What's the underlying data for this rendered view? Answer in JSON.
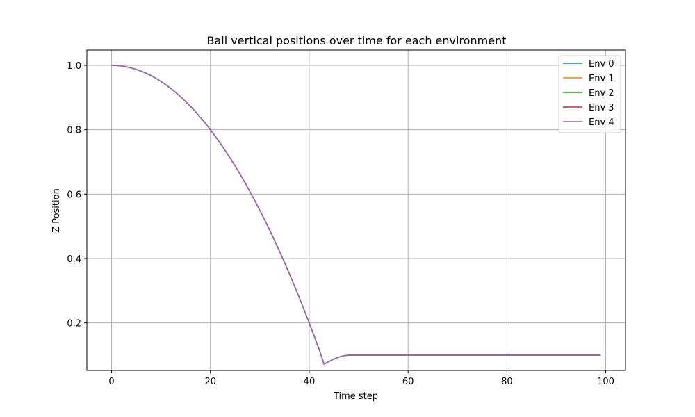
{
  "chart_data": {
    "type": "line",
    "title": "Ball vertical positions over time for each environment",
    "xlabel": "Time step",
    "ylabel": "Z Position",
    "xlim": [
      -5,
      104
    ],
    "ylim": [
      0.0525,
      1.0475
    ],
    "xticks": [
      0,
      20,
      40,
      60,
      80,
      100
    ],
    "yticks": [
      0.2,
      0.4,
      0.6,
      0.8,
      1.0
    ],
    "xtick_labels": [
      "0",
      "20",
      "40",
      "60",
      "80",
      "100"
    ],
    "ytick_labels": [
      "0.2",
      "0.4",
      "0.6",
      "0.8",
      "1.0"
    ],
    "grid": true,
    "legend_position": "top-right",
    "x": [
      0,
      1,
      2,
      3,
      4,
      5,
      6,
      7,
      8,
      9,
      10,
      11,
      12,
      13,
      14,
      15,
      16,
      17,
      18,
      19,
      20,
      21,
      22,
      23,
      24,
      25,
      26,
      27,
      28,
      29,
      30,
      31,
      32,
      33,
      34,
      35,
      36,
      37,
      38,
      39,
      40,
      41,
      42,
      43,
      44,
      45,
      46,
      47,
      48,
      49,
      50,
      51,
      52,
      53,
      54,
      55,
      56,
      57,
      58,
      59,
      60,
      61,
      62,
      63,
      64,
      65,
      66,
      67,
      68,
      69,
      70,
      71,
      72,
      73,
      74,
      75,
      76,
      77,
      78,
      79,
      80,
      81,
      82,
      83,
      84,
      85,
      86,
      87,
      88,
      89,
      90,
      91,
      92,
      93,
      94,
      95,
      96,
      97,
      98,
      99
    ],
    "series": [
      {
        "name": "Env 0",
        "color": "#1f77b4",
        "values": [
          1.0,
          0.9995,
          0.998,
          0.9955,
          0.992,
          0.9875,
          0.982,
          0.9755,
          0.968,
          0.9595,
          0.95,
          0.9395,
          0.928,
          0.9155,
          0.902,
          0.8875,
          0.872,
          0.8555,
          0.838,
          0.8195,
          0.8,
          0.7795,
          0.758,
          0.7355,
          0.712,
          0.6875,
          0.662,
          0.6355,
          0.608,
          0.5795,
          0.55,
          0.5195,
          0.488,
          0.4555,
          0.422,
          0.3875,
          0.352,
          0.3155,
          0.278,
          0.2395,
          0.2,
          0.1595,
          0.118,
          0.072,
          0.08,
          0.088,
          0.094,
          0.098,
          0.1,
          0.1,
          0.1,
          0.1,
          0.1,
          0.1,
          0.1,
          0.1,
          0.1,
          0.1,
          0.1,
          0.1,
          0.1,
          0.1,
          0.1,
          0.1,
          0.1,
          0.1,
          0.1,
          0.1,
          0.1,
          0.1,
          0.1,
          0.1,
          0.1,
          0.1,
          0.1,
          0.1,
          0.1,
          0.1,
          0.1,
          0.1,
          0.1,
          0.1,
          0.1,
          0.1,
          0.1,
          0.1,
          0.1,
          0.1,
          0.1,
          0.1,
          0.1,
          0.1,
          0.1,
          0.1,
          0.1,
          0.1,
          0.1,
          0.1,
          0.1,
          0.1
        ]
      },
      {
        "name": "Env 1",
        "color": "#ff7f0e",
        "values": [
          1.0,
          0.9995,
          0.998,
          0.9955,
          0.992,
          0.9875,
          0.982,
          0.9755,
          0.968,
          0.9595,
          0.95,
          0.9395,
          0.928,
          0.9155,
          0.902,
          0.8875,
          0.872,
          0.8555,
          0.838,
          0.8195,
          0.8,
          0.7795,
          0.758,
          0.7355,
          0.712,
          0.6875,
          0.662,
          0.6355,
          0.608,
          0.5795,
          0.55,
          0.5195,
          0.488,
          0.4555,
          0.422,
          0.3875,
          0.352,
          0.3155,
          0.278,
          0.2395,
          0.2,
          0.1595,
          0.118,
          0.072,
          0.08,
          0.088,
          0.094,
          0.098,
          0.1,
          0.1,
          0.1,
          0.1,
          0.1,
          0.1,
          0.1,
          0.1,
          0.1,
          0.1,
          0.1,
          0.1,
          0.1,
          0.1,
          0.1,
          0.1,
          0.1,
          0.1,
          0.1,
          0.1,
          0.1,
          0.1,
          0.1,
          0.1,
          0.1,
          0.1,
          0.1,
          0.1,
          0.1,
          0.1,
          0.1,
          0.1,
          0.1,
          0.1,
          0.1,
          0.1,
          0.1,
          0.1,
          0.1,
          0.1,
          0.1,
          0.1,
          0.1,
          0.1,
          0.1,
          0.1,
          0.1,
          0.1,
          0.1,
          0.1,
          0.1,
          0.1
        ]
      },
      {
        "name": "Env 2",
        "color": "#2ca02c",
        "values": [
          1.0,
          0.9995,
          0.998,
          0.9955,
          0.992,
          0.9875,
          0.982,
          0.9755,
          0.968,
          0.9595,
          0.95,
          0.9395,
          0.928,
          0.9155,
          0.902,
          0.8875,
          0.872,
          0.8555,
          0.838,
          0.8195,
          0.8,
          0.7795,
          0.758,
          0.7355,
          0.712,
          0.6875,
          0.662,
          0.6355,
          0.608,
          0.5795,
          0.55,
          0.5195,
          0.488,
          0.4555,
          0.422,
          0.3875,
          0.352,
          0.3155,
          0.278,
          0.2395,
          0.2,
          0.1595,
          0.118,
          0.072,
          0.08,
          0.088,
          0.094,
          0.098,
          0.1,
          0.1,
          0.1,
          0.1,
          0.1,
          0.1,
          0.1,
          0.1,
          0.1,
          0.1,
          0.1,
          0.1,
          0.1,
          0.1,
          0.1,
          0.1,
          0.1,
          0.1,
          0.1,
          0.1,
          0.1,
          0.1,
          0.1,
          0.1,
          0.1,
          0.1,
          0.1,
          0.1,
          0.1,
          0.1,
          0.1,
          0.1,
          0.1,
          0.1,
          0.1,
          0.1,
          0.1,
          0.1,
          0.1,
          0.1,
          0.1,
          0.1,
          0.1,
          0.1,
          0.1,
          0.1,
          0.1,
          0.1,
          0.1,
          0.1,
          0.1,
          0.1
        ]
      },
      {
        "name": "Env 3",
        "color": "#d62728",
        "values": [
          1.0,
          0.9995,
          0.998,
          0.9955,
          0.992,
          0.9875,
          0.982,
          0.9755,
          0.968,
          0.9595,
          0.95,
          0.9395,
          0.928,
          0.9155,
          0.902,
          0.8875,
          0.872,
          0.8555,
          0.838,
          0.8195,
          0.8,
          0.7795,
          0.758,
          0.7355,
          0.712,
          0.6875,
          0.662,
          0.6355,
          0.608,
          0.5795,
          0.55,
          0.5195,
          0.488,
          0.4555,
          0.422,
          0.3875,
          0.352,
          0.3155,
          0.278,
          0.2395,
          0.2,
          0.1595,
          0.118,
          0.072,
          0.08,
          0.088,
          0.094,
          0.098,
          0.1,
          0.1,
          0.1,
          0.1,
          0.1,
          0.1,
          0.1,
          0.1,
          0.1,
          0.1,
          0.1,
          0.1,
          0.1,
          0.1,
          0.1,
          0.1,
          0.1,
          0.1,
          0.1,
          0.1,
          0.1,
          0.1,
          0.1,
          0.1,
          0.1,
          0.1,
          0.1,
          0.1,
          0.1,
          0.1,
          0.1,
          0.1,
          0.1,
          0.1,
          0.1,
          0.1,
          0.1,
          0.1,
          0.1,
          0.1,
          0.1,
          0.1,
          0.1,
          0.1,
          0.1,
          0.1,
          0.1,
          0.1,
          0.1,
          0.1,
          0.1,
          0.1
        ]
      },
      {
        "name": "Env 4",
        "color": "#9467bd",
        "values": [
          1.0,
          0.9995,
          0.998,
          0.9955,
          0.992,
          0.9875,
          0.982,
          0.9755,
          0.968,
          0.9595,
          0.95,
          0.9395,
          0.928,
          0.9155,
          0.902,
          0.8875,
          0.872,
          0.8555,
          0.838,
          0.8195,
          0.8,
          0.7795,
          0.758,
          0.7355,
          0.712,
          0.6875,
          0.662,
          0.6355,
          0.608,
          0.5795,
          0.55,
          0.5195,
          0.488,
          0.4555,
          0.422,
          0.3875,
          0.352,
          0.3155,
          0.278,
          0.2395,
          0.2,
          0.1595,
          0.118,
          0.072,
          0.08,
          0.088,
          0.094,
          0.098,
          0.1,
          0.1,
          0.1,
          0.1,
          0.1,
          0.1,
          0.1,
          0.1,
          0.1,
          0.1,
          0.1,
          0.1,
          0.1,
          0.1,
          0.1,
          0.1,
          0.1,
          0.1,
          0.1,
          0.1,
          0.1,
          0.1,
          0.1,
          0.1,
          0.1,
          0.1,
          0.1,
          0.1,
          0.1,
          0.1,
          0.1,
          0.1,
          0.1,
          0.1,
          0.1,
          0.1,
          0.1,
          0.1,
          0.1,
          0.1,
          0.1,
          0.1,
          0.1,
          0.1,
          0.1,
          0.1,
          0.1,
          0.1,
          0.1,
          0.1,
          0.1,
          0.1
        ]
      }
    ]
  }
}
